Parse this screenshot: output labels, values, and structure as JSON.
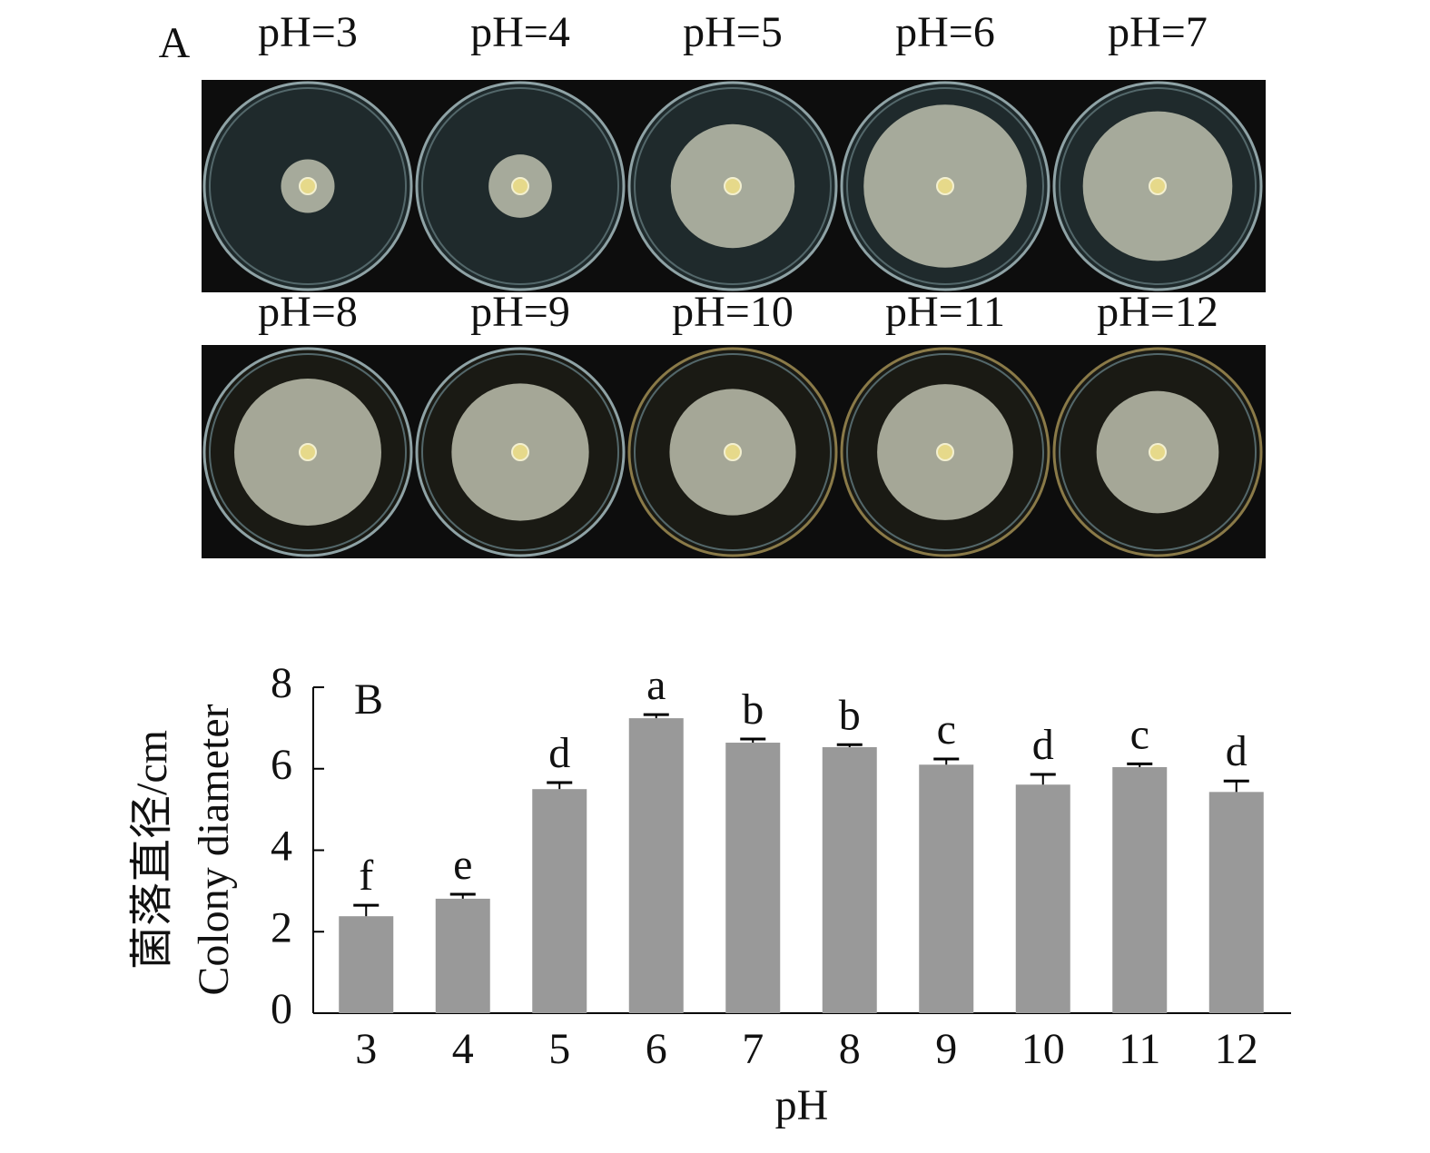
{
  "panel_a": {
    "label": "A",
    "plates": [
      "pH=3",
      "pH=4",
      "pH=5",
      "pH=6",
      "pH=7",
      "pH=8",
      "pH=9",
      "pH=10",
      "pH=11",
      "pH=12"
    ]
  },
  "chart_data": {
    "type": "bar",
    "panel_label": "B",
    "y_label": [
      "菌落直径/cm",
      "Colony diameter"
    ],
    "x_label": "pH",
    "categories": [
      "3",
      "4",
      "5",
      "6",
      "7",
      "8",
      "9",
      "10",
      "11",
      "12"
    ],
    "series": [
      {
        "color": "#999999",
        "values": [
          2.38,
          2.81,
          5.5,
          7.24,
          6.64,
          6.53,
          6.1,
          5.61,
          6.04,
          5.43
        ],
        "errors": [
          0.27,
          0.11,
          0.16,
          0.09,
          0.09,
          0.06,
          0.14,
          0.25,
          0.08,
          0.27
        ],
        "significance": [
          "f",
          "e",
          "d",
          "a",
          "b",
          "b",
          "c",
          "d",
          "c",
          "d"
        ]
      }
    ],
    "ylim": [
      0,
      8
    ],
    "yticks": [
      0,
      2,
      4,
      6,
      8
    ]
  }
}
